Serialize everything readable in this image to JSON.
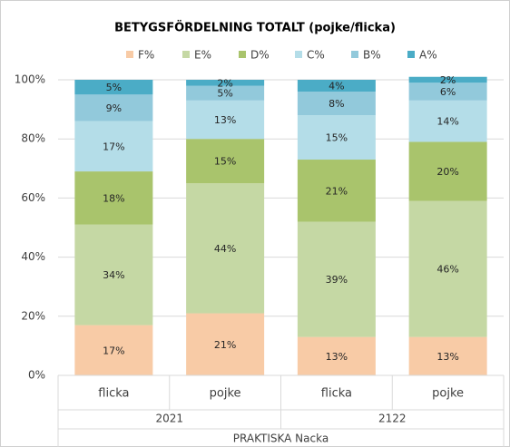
{
  "chart_data": {
    "type": "stacked_bar",
    "title": "BETYGSFÖRDELNING TOTALT (pojke/flicka)",
    "categories": [
      "flicka",
      "pojke",
      "flicka",
      "pojke"
    ],
    "groups": [
      "2021",
      "2122"
    ],
    "supergroup": "PRAKTISKA Nacka",
    "series": [
      {
        "name": "F%",
        "color": "#f8cba6",
        "values": [
          17,
          21,
          13,
          13
        ],
        "value_labels": [
          "17%",
          "21%",
          "13%",
          "13%"
        ]
      },
      {
        "name": "E%",
        "color": "#c5d8a4",
        "values": [
          34,
          44,
          39,
          46
        ],
        "value_labels": [
          "34%",
          "44%",
          "39%",
          "46%"
        ]
      },
      {
        "name": "D%",
        "color": "#a9c46c",
        "values": [
          18,
          15,
          21,
          20
        ],
        "value_labels": [
          "18%",
          "15%",
          "21%",
          "20%"
        ]
      },
      {
        "name": "C%",
        "color": "#b4dde8",
        "values": [
          17,
          13,
          15,
          14
        ],
        "value_labels": [
          "17%",
          "13%",
          "15%",
          "14%"
        ]
      },
      {
        "name": "B%",
        "color": "#92c9db",
        "values": [
          9,
          5,
          8,
          6
        ],
        "value_labels": [
          "9%",
          "5%",
          "8%",
          "6%"
        ]
      },
      {
        "name": "A%",
        "color": "#4bacc6",
        "values": [
          5,
          2,
          4,
          2
        ],
        "value_labels": [
          "5%",
          "2%",
          "4%",
          "2%"
        ]
      }
    ],
    "ylim": [
      0,
      100
    ],
    "yticks": [
      {
        "value": 0,
        "label": "0%"
      },
      {
        "value": 20,
        "label": "20%"
      },
      {
        "value": 40,
        "label": "40%"
      },
      {
        "value": 60,
        "label": "60%"
      },
      {
        "value": 80,
        "label": "80%"
      },
      {
        "value": 100,
        "label": "100%"
      }
    ],
    "grid": true,
    "legend": "top"
  }
}
